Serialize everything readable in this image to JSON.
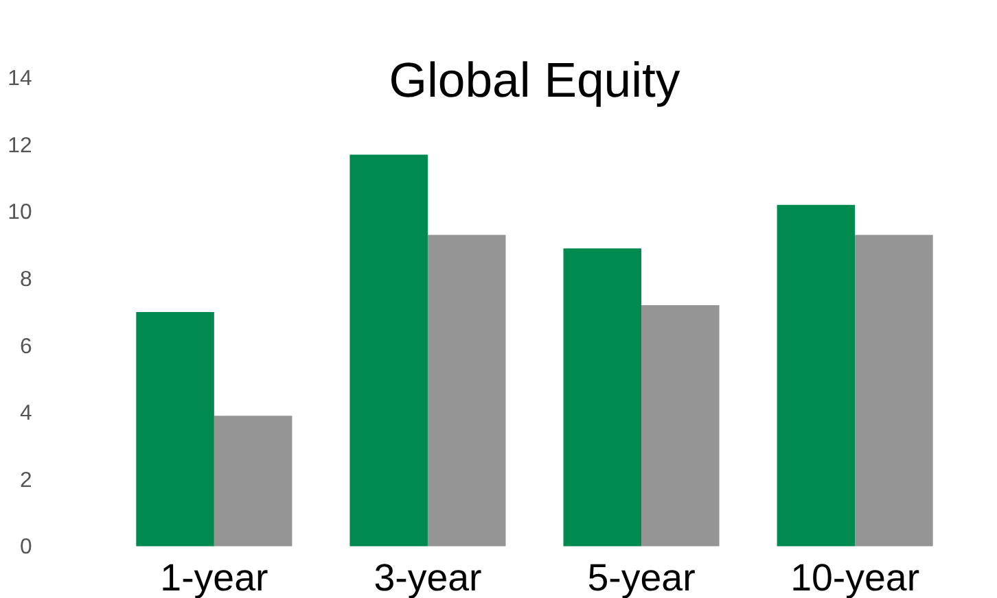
{
  "chart_data": {
    "type": "bar",
    "title": "Global Equity",
    "categories": [
      "1-year",
      "3-year",
      "5-year",
      "10-year"
    ],
    "series": [
      {
        "color": "#008a50",
        "values": [
          7.0,
          11.7,
          8.9,
          10.2
        ]
      },
      {
        "color": "#959595",
        "values": [
          3.9,
          9.3,
          7.2,
          9.3
        ]
      }
    ],
    "ylim": [
      0,
      14
    ],
    "yticks": [
      0,
      2,
      4,
      6,
      8,
      10,
      12,
      14
    ],
    "grid": false,
    "legend": false
  }
}
